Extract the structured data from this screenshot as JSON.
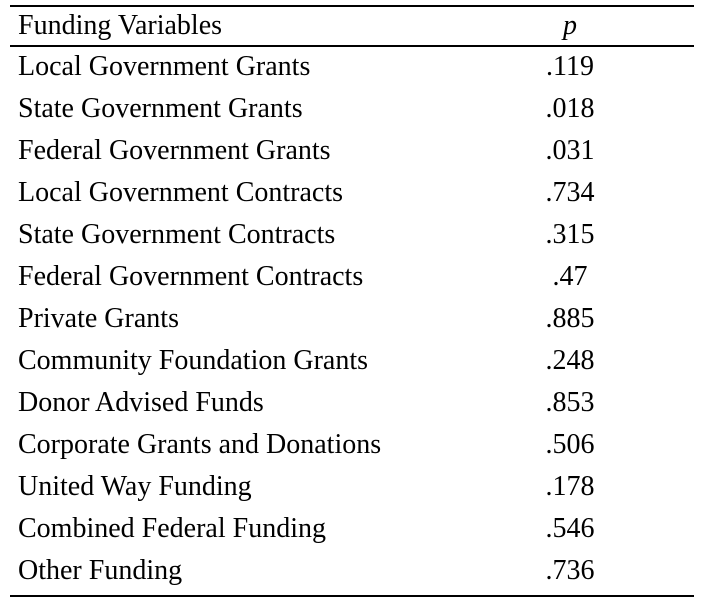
{
  "table": {
    "header": {
      "variable_label": "Funding Variables",
      "p_label": "p"
    },
    "rows": [
      {
        "variable": "Local Government Grants",
        "p": ".119"
      },
      {
        "variable": "State Government Grants",
        "p": ".018"
      },
      {
        "variable": "Federal Government Grants",
        "p": ".031"
      },
      {
        "variable": "Local Government Contracts",
        "p": ".734"
      },
      {
        "variable": "State Government Contracts",
        "p": ".315"
      },
      {
        "variable": "Federal Government Contracts",
        "p": ".47"
      },
      {
        "variable": "Private Grants",
        "p": ".885"
      },
      {
        "variable": "Community Foundation Grants",
        "p": ".248"
      },
      {
        "variable": "Donor Advised Funds",
        "p": ".853"
      },
      {
        "variable": "Corporate Grants and Donations",
        "p": ".506"
      },
      {
        "variable": "United Way Funding",
        "p": ".178"
      },
      {
        "variable": "Combined Federal Funding",
        "p": ".546"
      },
      {
        "variable": "Other Funding",
        "p": ".736"
      }
    ]
  }
}
